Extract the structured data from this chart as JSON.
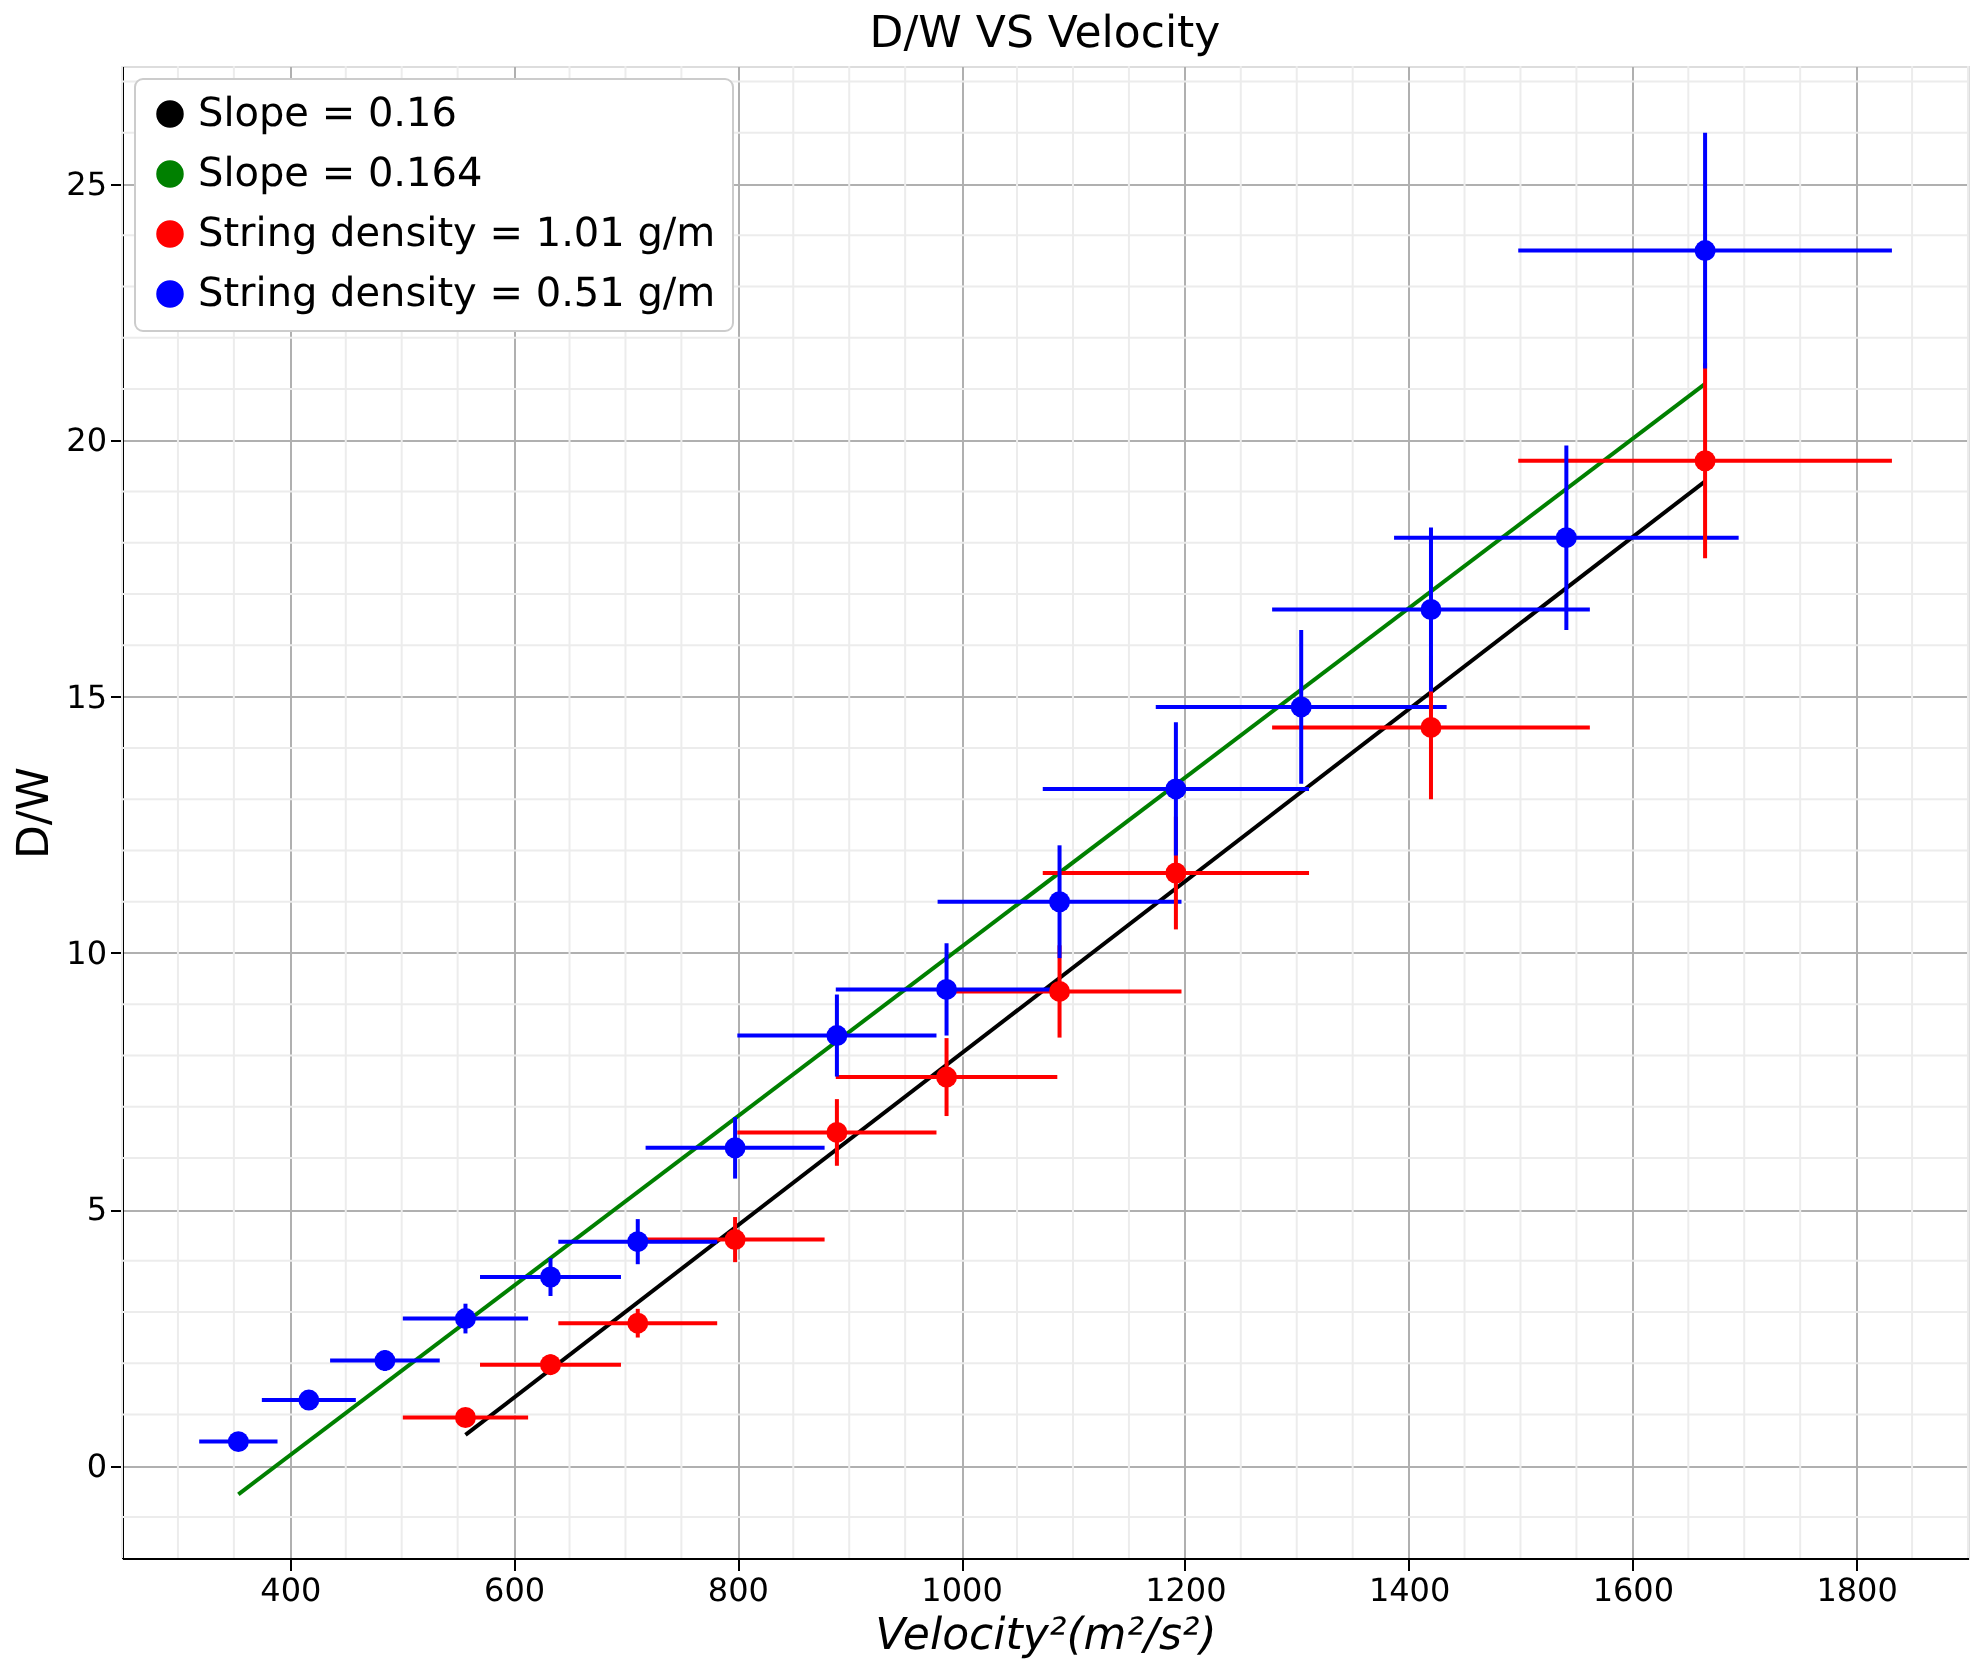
{
  "chart_data": {
    "type": "scatter",
    "title": "D/W VS Velocity",
    "xlabel": "Velocity²(m²/s²)",
    "ylabel": "D/W",
    "xlim": [
      250,
      1900
    ],
    "ylim": [
      -1.8,
      27.3
    ],
    "xticks": [
      {
        "value": 250,
        "label": null
      },
      {
        "value": 300,
        "label": null
      },
      {
        "value": 350,
        "label": null
      },
      400,
      {
        "value": 450,
        "label": null
      },
      {
        "value": 500,
        "label": null
      },
      {
        "value": 550,
        "label": null
      },
      600,
      {
        "value": 650,
        "label": null
      },
      {
        "value": 700,
        "label": null
      },
      {
        "value": 750,
        "label": null
      },
      800,
      {
        "value": 850,
        "label": null
      },
      {
        "value": 900,
        "label": null
      },
      {
        "value": 950,
        "label": null
      },
      1000,
      {
        "value": 1050,
        "label": null
      },
      {
        "value": 1100,
        "label": null
      },
      {
        "value": 1150,
        "label": null
      },
      1200,
      {
        "value": 1250,
        "label": null
      },
      {
        "value": 1300,
        "label": null
      },
      {
        "value": 1350,
        "label": null
      },
      1400,
      {
        "value": 1450,
        "label": null
      },
      {
        "value": 1500,
        "label": null
      },
      {
        "value": 1550,
        "label": null
      },
      1600,
      {
        "value": 1650,
        "label": null
      },
      {
        "value": 1700,
        "label": null
      },
      {
        "value": 1750,
        "label": null
      },
      1800,
      {
        "value": 1850,
        "label": null
      },
      {
        "value": 1900,
        "label": null
      }
    ],
    "yticks": [
      {
        "value": -1,
        "label": null
      },
      0,
      {
        "value": 1,
        "label": null
      },
      {
        "value": 2,
        "label": null
      },
      {
        "value": 3,
        "label": null
      },
      {
        "value": 4,
        "label": null
      },
      5,
      {
        "value": 6,
        "label": null
      },
      {
        "value": 7,
        "label": null
      },
      {
        "value": 8,
        "label": null
      },
      {
        "value": 9,
        "label": null
      },
      10,
      {
        "value": 11,
        "label": null
      },
      {
        "value": 12,
        "label": null
      },
      {
        "value": 13,
        "label": null
      },
      {
        "value": 14,
        "label": null
      },
      15,
      {
        "value": 16,
        "label": null
      },
      {
        "value": 17,
        "label": null
      },
      {
        "value": 18,
        "label": null
      },
      {
        "value": 19,
        "label": null
      },
      20,
      {
        "value": 21,
        "label": null
      },
      {
        "value": 22,
        "label": null
      },
      {
        "value": 23,
        "label": null
      },
      {
        "value": 24,
        "label": null
      },
      25,
      {
        "value": 26,
        "label": null
      },
      {
        "value": 27,
        "label": null
      }
    ],
    "grid": true,
    "legend": "top left",
    "series": [
      {
        "name": "Slope = 0.16",
        "type": "line",
        "marker": "none",
        "color": "#000000",
        "x": [
          557,
          1665
        ],
        "values": [
          0.6,
          19.2
        ]
      },
      {
        "name": "Slope = 0.164",
        "type": "line",
        "marker": "none",
        "color": "#008000",
        "x": [
          354,
          1665
        ],
        "values": [
          -0.56,
          21.1
        ]
      },
      {
        "name": "String density = 1.01 g/m",
        "type": "scatter",
        "marker": "circle",
        "color": "#ff0000",
        "x": [
          557,
          633,
          711,
          798,
          889,
          987,
          1088,
          1192,
          1420,
          1665
        ],
        "values": [
          0.94,
          1.97,
          2.78,
          4.41,
          6.5,
          7.58,
          9.25,
          11.56,
          14.4,
          19.6
        ],
        "xerrors": [
          56,
          63,
          71,
          80,
          89,
          99,
          109,
          119,
          142,
          167
        ],
        "errors": [
          0.1,
          0.2,
          0.28,
          0.44,
          0.65,
          0.76,
          0.9,
          1.1,
          1.4,
          1.9
        ]
      },
      {
        "name": "String density = 0.51 g/m",
        "type": "scatter",
        "marker": "circle",
        "color": "#0000ff",
        "x": [
          354,
          417,
          485,
          557,
          633,
          711,
          798,
          889,
          987,
          1088,
          1192,
          1304,
          1420,
          1541,
          1665
        ],
        "values": [
          0.47,
          1.28,
          2.05,
          2.87,
          3.68,
          4.37,
          6.2,
          8.39,
          9.29,
          11.0,
          13.2,
          14.8,
          16.7,
          18.1,
          23.7
        ],
        "xerrors": [
          35,
          42,
          49,
          56,
          63,
          71,
          80,
          89,
          99,
          109,
          119,
          130,
          142,
          154,
          167
        ],
        "errors": [
          0.05,
          0.13,
          0.2,
          0.29,
          0.37,
          0.44,
          0.6,
          0.8,
          0.9,
          1.1,
          1.3,
          1.5,
          1.6,
          1.8,
          2.3
        ]
      }
    ]
  }
}
